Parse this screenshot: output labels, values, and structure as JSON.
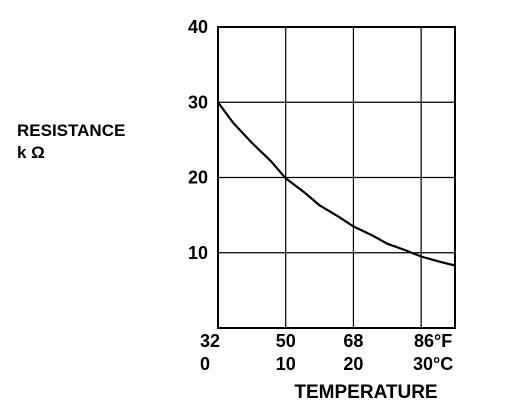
{
  "chart_data": {
    "type": "line",
    "title": "",
    "ylabel": "RESISTANCE",
    "yunit": "k Ω",
    "xlabel": "TEMPERATURE",
    "xlim": [
      32,
      95
    ],
    "ylim": [
      0,
      40
    ],
    "grid": true,
    "y_ticks": [
      "10",
      "20",
      "30",
      "40"
    ],
    "x_ticks_f": [
      "32",
      "50",
      "68",
      "86°F"
    ],
    "x_ticks_c": [
      "0",
      "10",
      "20",
      "30°C"
    ],
    "series": [
      {
        "x": [
          32,
          36,
          41,
          46,
          50,
          55,
          59,
          64,
          68,
          73,
          77,
          82,
          86,
          91,
          95
        ],
        "y": [
          30,
          27.3,
          24.6,
          22.2,
          19.9,
          18,
          16.3,
          14.8,
          13.5,
          12.3,
          11.2,
          10.3,
          9.5,
          8.8,
          8.3
        ]
      }
    ]
  }
}
